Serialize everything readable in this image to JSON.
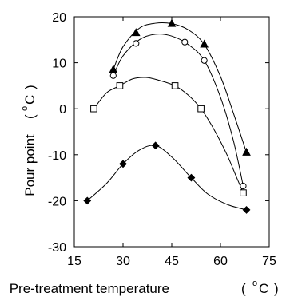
{
  "chart_data": {
    "type": "scatter",
    "xlabel": "Pre-treatment  temperature",
    "xlabel_unit_open": "(",
    "xlabel_unit_deg": "o",
    "xlabel_unit_c": "C",
    "xlabel_unit_close": ")",
    "ylabel": "Pour point",
    "ylabel_unit_open": "(",
    "ylabel_unit_deg": "o",
    "ylabel_unit_c": "C",
    "ylabel_unit_close": ")",
    "xlim": [
      15,
      75
    ],
    "ylim": [
      -30,
      20
    ],
    "xticks": [
      15,
      30,
      45,
      60,
      75
    ],
    "yticks": [
      -30,
      -20,
      -10,
      0,
      10,
      20
    ],
    "xtick_labels": [
      "15",
      "30",
      "45",
      "60",
      "75"
    ],
    "ytick_labels": [
      "-30",
      "-20",
      "-10",
      "0",
      "10",
      "20"
    ],
    "grid": false,
    "series": [
      {
        "marker": "triangle-filled",
        "points": [
          [
            27,
            8.5
          ],
          [
            34,
            16.5
          ],
          [
            45,
            18.5
          ],
          [
            55,
            14
          ],
          [
            68,
            -9.5
          ]
        ],
        "curve": [
          [
            27,
            8.5
          ],
          [
            30,
            13.5
          ],
          [
            35,
            17.5
          ],
          [
            40,
            18.6
          ],
          [
            45,
            18.5
          ],
          [
            50,
            17.2
          ],
          [
            55,
            14
          ],
          [
            60,
            7
          ],
          [
            64,
            -1
          ],
          [
            68,
            -9.5
          ]
        ]
      },
      {
        "marker": "circle-open",
        "points": [
          [
            27,
            7.2
          ],
          [
            34,
            14.2
          ],
          [
            49,
            14.5
          ],
          [
            55,
            10.5
          ],
          [
            67,
            -16.8
          ]
        ],
        "curve": [
          [
            27,
            7.2
          ],
          [
            30,
            11.5
          ],
          [
            35,
            15
          ],
          [
            40,
            16.2
          ],
          [
            45,
            15.8
          ],
          [
            50,
            14
          ],
          [
            55,
            10.5
          ],
          [
            60,
            2.5
          ],
          [
            64,
            -7
          ],
          [
            67,
            -16.8
          ]
        ]
      },
      {
        "marker": "square-open",
        "points": [
          [
            21,
            0
          ],
          [
            29,
            5
          ],
          [
            46,
            5
          ],
          [
            54,
            0
          ],
          [
            67,
            -18.3
          ]
        ],
        "curve": [
          [
            21,
            0
          ],
          [
            25,
            3.5
          ],
          [
            29,
            5
          ],
          [
            33,
            6.5
          ],
          [
            37,
            6.8
          ],
          [
            41,
            6.2
          ],
          [
            46,
            5
          ],
          [
            50,
            3
          ],
          [
            54,
            0
          ],
          [
            58,
            -4.5
          ],
          [
            62,
            -10
          ],
          [
            65,
            -15
          ],
          [
            67,
            -18.3
          ]
        ]
      },
      {
        "marker": "diamond-filled",
        "points": [
          [
            19,
            -20
          ],
          [
            30,
            -12
          ],
          [
            40,
            -8
          ],
          [
            51,
            -15
          ],
          [
            68,
            -22
          ]
        ],
        "curve": [
          [
            19,
            -20
          ],
          [
            25,
            -16.2
          ],
          [
            30,
            -12
          ],
          [
            35,
            -9
          ],
          [
            40,
            -8
          ],
          [
            45,
            -10.5
          ],
          [
            51,
            -15
          ],
          [
            56,
            -18.5
          ],
          [
            62,
            -20.8
          ],
          [
            68,
            -22
          ]
        ]
      }
    ]
  }
}
